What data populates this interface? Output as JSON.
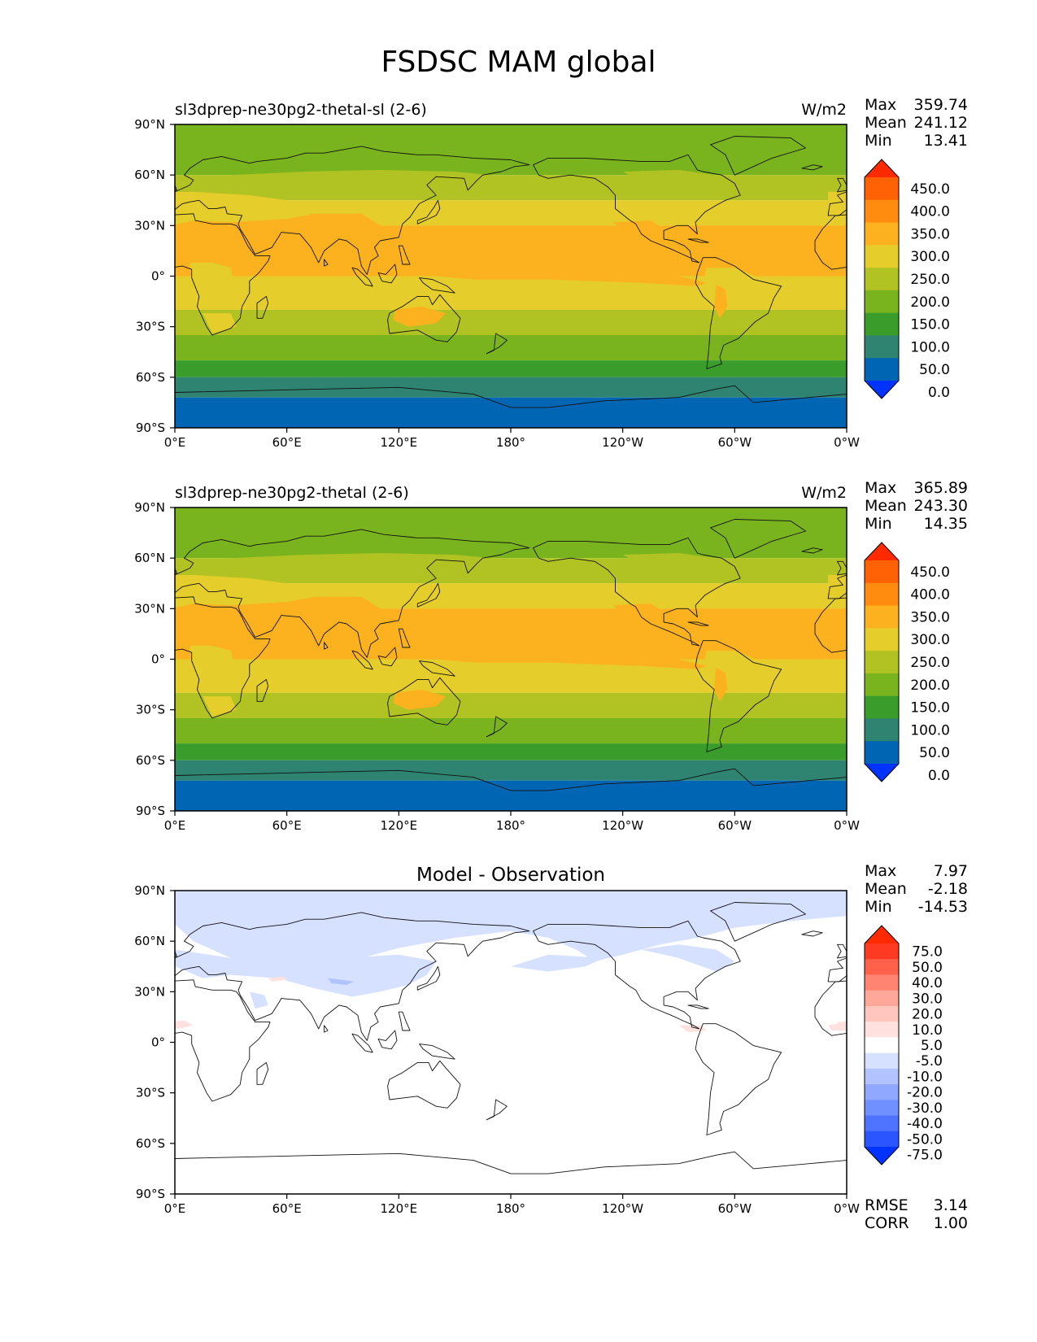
{
  "title": "FSDSC MAM global",
  "x_ticks": [
    "0°E",
    "60°E",
    "120°E",
    "180°",
    "120°W",
    "60°W",
    "0°W"
  ],
  "y_ticks": [
    "90°N",
    "60°N",
    "30°N",
    "0°",
    "30°S",
    "60°S",
    "90°S"
  ],
  "panels": [
    {
      "subtitle": "sl3dprep-ne30pg2-thetal-sl (2-6)",
      "units": "W/m2",
      "stats": [
        {
          "label": "Max",
          "value": "359.74"
        },
        {
          "label": "Mean",
          "value": "241.12"
        },
        {
          "label": "Min",
          "value": "13.41"
        }
      ],
      "colorbar": [
        "450.0",
        "400.0",
        "350.0",
        "300.0",
        "250.0",
        "200.0",
        "150.0",
        "100.0",
        "50.0",
        "0.0"
      ],
      "max_hot": [
        88,
        113
      ]
    },
    {
      "subtitle": "sl3dprep-ne30pg2-thetal (2-6)",
      "units": "W/m2",
      "stats": [
        {
          "label": "Max",
          "value": "365.89"
        },
        {
          "label": "Mean",
          "value": "243.30"
        },
        {
          "label": "Min",
          "value": "14.35"
        }
      ],
      "colorbar": [
        "450.0",
        "400.0",
        "350.0",
        "300.0",
        "250.0",
        "200.0",
        "150.0",
        "100.0",
        "50.0",
        "0.0"
      ],
      "max_hot": [
        88,
        113
      ]
    },
    {
      "title": "Model - Observation",
      "stats": [
        {
          "label": "Max",
          "value": "7.97"
        },
        {
          "label": "Mean",
          "value": "-2.18"
        },
        {
          "label": "Min",
          "value": "-14.53"
        }
      ],
      "colorbar": [
        "75.0",
        "50.0",
        "40.0",
        "30.0",
        "20.0",
        "10.0",
        "5.0",
        "-5.0",
        "-10.0",
        "-20.0",
        "-30.0",
        "-40.0",
        "-50.0",
        "-75.0"
      ],
      "metrics": [
        {
          "label": "RMSE",
          "value": "3.14"
        },
        {
          "label": "CORR",
          "value": "1.00"
        }
      ]
    }
  ],
  "chart_data": [
    {
      "type": "heatmap",
      "title": "sl3dprep-ne30pg2-thetal-sl (2-6)",
      "units": "W/m2",
      "x_range": [
        0,
        360
      ],
      "y_range": [
        -90,
        90
      ],
      "levels": [
        0,
        50,
        100,
        150,
        200,
        250,
        300,
        350,
        400,
        450
      ],
      "stats": {
        "max": 359.74,
        "mean": 241.12,
        "min": 13.41
      },
      "zonal_bands": [
        {
          "lat": [
            60,
            90
          ],
          "range": "150-200"
        },
        {
          "lat": [
            45,
            60
          ],
          "range": "200-250"
        },
        {
          "lat": [
            30,
            45
          ],
          "range": "250-300"
        },
        {
          "lat": [
            0,
            30
          ],
          "range": "300-350"
        },
        {
          "lat": [
            -20,
            0
          ],
          "range": "250-300"
        },
        {
          "lat": [
            -35,
            -20
          ],
          "range": "200-250"
        },
        {
          "lat": [
            -50,
            -35
          ],
          "range": "150-200"
        },
        {
          "lat": [
            -60,
            -50
          ],
          "range": "100-150"
        },
        {
          "lat": [
            -72,
            -60
          ],
          "range": "50-100"
        },
        {
          "lat": [
            -90,
            -72
          ],
          "range": "0-50"
        }
      ]
    },
    {
      "type": "heatmap",
      "title": "sl3dprep-ne30pg2-thetal (2-6)",
      "units": "W/m2",
      "x_range": [
        0,
        360
      ],
      "y_range": [
        -90,
        90
      ],
      "levels": [
        0,
        50,
        100,
        150,
        200,
        250,
        300,
        350,
        400,
        450
      ],
      "stats": {
        "max": 365.89,
        "mean": 243.3,
        "min": 14.35
      },
      "zonal_bands": [
        {
          "lat": [
            60,
            90
          ],
          "range": "150-200"
        },
        {
          "lat": [
            45,
            60
          ],
          "range": "200-250"
        },
        {
          "lat": [
            30,
            45
          ],
          "range": "250-300"
        },
        {
          "lat": [
            0,
            30
          ],
          "range": "300-350"
        },
        {
          "lat": [
            -20,
            0
          ],
          "range": "250-300"
        },
        {
          "lat": [
            -35,
            -20
          ],
          "range": "200-250"
        },
        {
          "lat": [
            -50,
            -35
          ],
          "range": "150-200"
        },
        {
          "lat": [
            -60,
            -50
          ],
          "range": "100-150"
        },
        {
          "lat": [
            -72,
            -60
          ],
          "range": "50-100"
        },
        {
          "lat": [
            -90,
            -72
          ],
          "range": "0-50"
        }
      ]
    },
    {
      "type": "heatmap",
      "title": "Model - Observation",
      "x_range": [
        0,
        360
      ],
      "y_range": [
        -90,
        90
      ],
      "levels": [
        -75,
        -50,
        -40,
        -30,
        -20,
        -10,
        -5,
        5,
        10,
        20,
        30,
        40,
        50,
        75
      ],
      "stats": {
        "max": 7.97,
        "mean": -2.18,
        "min": -14.53,
        "rmse": 3.14,
        "corr": 1.0
      }
    }
  ],
  "colors": {
    "abs": [
      "#0033ff",
      "#0066b3",
      "#2e8470",
      "#3a9d2b",
      "#79b41e",
      "#b1c223",
      "#e5cd2b",
      "#fcb21f",
      "#ff8c0f",
      "#ff6105",
      "#ff2a00"
    ],
    "diff": [
      "#0033ff",
      "#2a55ff",
      "#4d73ff",
      "#7090ff",
      "#90a8ff",
      "#b3c3ff",
      "#d6e0ff",
      "#ffffff",
      "#ffe2df",
      "#ffc6be",
      "#ffa799",
      "#ff8572",
      "#ff614b",
      "#ff3a22",
      "#ff2a00"
    ]
  }
}
